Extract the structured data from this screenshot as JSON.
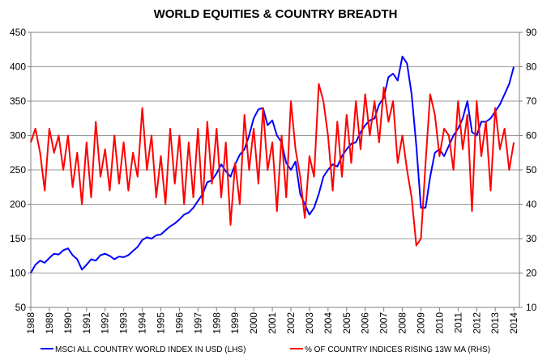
{
  "chart_data": {
    "type": "line",
    "title": "WORLD EQUITIES & COUNTRY BREADTH",
    "x_ticks": [
      "1988",
      "1989",
      "1990",
      "1991",
      "1992",
      "1993",
      "1994",
      "1995",
      "1996",
      "1997",
      "1998",
      "1999",
      "2000",
      "2001",
      "2002",
      "2003",
      "2004",
      "2005",
      "2006",
      "2007",
      "2008",
      "2009",
      "2010",
      "2011",
      "2012",
      "2013",
      "2014"
    ],
    "xlim": [
      1988,
      2014.3
    ],
    "left_axis": {
      "ylim": [
        50,
        450
      ],
      "ticks": [
        50,
        100,
        150,
        200,
        250,
        300,
        350,
        400,
        450
      ]
    },
    "right_axis": {
      "ylim": [
        10,
        90
      ],
      "ticks": [
        10,
        20,
        30,
        40,
        50,
        60,
        70,
        80,
        90
      ]
    },
    "grid": "horizontal",
    "legend_position": "bottom",
    "series": [
      {
        "name": "MSCI ALL COUNTRY WORLD INDEX IN USD (LHS)",
        "axis": "left",
        "color": "#0000ff",
        "x": [
          1988.0,
          1988.25,
          1988.5,
          1988.75,
          1989.0,
          1989.25,
          1989.5,
          1989.75,
          1990.0,
          1990.25,
          1990.5,
          1990.75,
          1991.0,
          1991.25,
          1991.5,
          1991.75,
          1992.0,
          1992.25,
          1992.5,
          1992.75,
          1993.0,
          1993.25,
          1993.5,
          1993.75,
          1994.0,
          1994.25,
          1994.5,
          1994.75,
          1995.0,
          1995.25,
          1995.5,
          1995.75,
          1996.0,
          1996.25,
          1996.5,
          1996.75,
          1997.0,
          1997.25,
          1997.5,
          1997.75,
          1998.0,
          1998.25,
          1998.5,
          1998.75,
          1999.0,
          1999.25,
          1999.5,
          1999.75,
          2000.0,
          2000.25,
          2000.5,
          2000.75,
          2001.0,
          2001.25,
          2001.5,
          2001.75,
          2002.0,
          2002.25,
          2002.5,
          2002.75,
          2003.0,
          2003.25,
          2003.5,
          2003.75,
          2004.0,
          2004.25,
          2004.5,
          2004.75,
          2005.0,
          2005.25,
          2005.5,
          2005.75,
          2006.0,
          2006.25,
          2006.5,
          2006.75,
          2007.0,
          2007.25,
          2007.5,
          2007.75,
          2008.0,
          2008.25,
          2008.5,
          2008.75,
          2009.0,
          2009.25,
          2009.5,
          2009.75,
          2010.0,
          2010.25,
          2010.5,
          2010.75,
          2011.0,
          2011.25,
          2011.5,
          2011.75,
          2012.0,
          2012.25,
          2012.5,
          2012.75,
          2013.0,
          2013.25,
          2013.5,
          2013.75,
          2014.0
        ],
        "values": [
          100,
          112,
          118,
          115,
          122,
          128,
          127,
          133,
          136,
          126,
          120,
          105,
          112,
          120,
          118,
          126,
          128,
          125,
          120,
          124,
          123,
          126,
          132,
          138,
          148,
          152,
          150,
          155,
          156,
          162,
          168,
          172,
          178,
          185,
          188,
          195,
          205,
          215,
          232,
          235,
          245,
          258,
          248,
          240,
          258,
          272,
          280,
          300,
          325,
          338,
          340,
          315,
          322,
          300,
          290,
          260,
          250,
          262,
          215,
          200,
          185,
          195,
          215,
          240,
          250,
          258,
          255,
          270,
          280,
          288,
          290,
          305,
          315,
          322,
          325,
          345,
          355,
          385,
          390,
          380,
          415,
          405,
          360,
          285,
          195,
          195,
          240,
          275,
          280,
          270,
          285,
          300,
          310,
          325,
          350,
          305,
          300,
          320,
          320,
          325,
          335,
          345,
          360,
          375,
          400
        ]
      },
      {
        "name": "% OF COUNTRY INDICES RISING 13W MA (RHS)",
        "axis": "right",
        "color": "#ff0000",
        "x": [
          1988.0,
          1988.25,
          1988.5,
          1988.75,
          1989.0,
          1989.25,
          1989.5,
          1989.75,
          1990.0,
          1990.25,
          1990.5,
          1990.75,
          1991.0,
          1991.25,
          1991.5,
          1991.75,
          1992.0,
          1992.25,
          1992.5,
          1992.75,
          1993.0,
          1993.25,
          1993.5,
          1993.75,
          1994.0,
          1994.25,
          1994.5,
          1994.75,
          1995.0,
          1995.25,
          1995.5,
          1995.75,
          1996.0,
          1996.25,
          1996.5,
          1996.75,
          1997.0,
          1997.25,
          1997.5,
          1997.75,
          1998.0,
          1998.25,
          1998.5,
          1998.75,
          1999.0,
          1999.25,
          1999.5,
          1999.75,
          2000.0,
          2000.25,
          2000.5,
          2000.75,
          2001.0,
          2001.25,
          2001.5,
          2001.75,
          2002.0,
          2002.25,
          2002.5,
          2002.75,
          2003.0,
          2003.25,
          2003.5,
          2003.75,
          2004.0,
          2004.25,
          2004.5,
          2004.75,
          2005.0,
          2005.25,
          2005.5,
          2005.75,
          2006.0,
          2006.25,
          2006.5,
          2006.75,
          2007.0,
          2007.25,
          2007.5,
          2007.75,
          2008.0,
          2008.25,
          2008.5,
          2008.75,
          2009.0,
          2009.25,
          2009.5,
          2009.75,
          2010.0,
          2010.25,
          2010.5,
          2010.75,
          2011.0,
          2011.25,
          2011.5,
          2011.75,
          2012.0,
          2012.25,
          2012.5,
          2012.75,
          2013.0,
          2013.25,
          2013.5,
          2013.75,
          2014.0
        ],
        "values": [
          58,
          62,
          55,
          44,
          62,
          55,
          60,
          50,
          60,
          45,
          55,
          40,
          58,
          42,
          64,
          48,
          56,
          44,
          60,
          46,
          58,
          44,
          55,
          48,
          68,
          50,
          60,
          42,
          54,
          40,
          62,
          46,
          60,
          40,
          58,
          42,
          62,
          40,
          64,
          46,
          62,
          42,
          58,
          34,
          52,
          40,
          66,
          50,
          62,
          46,
          68,
          50,
          58,
          38,
          60,
          42,
          70,
          56,
          48,
          36,
          54,
          48,
          75,
          70,
          60,
          44,
          64,
          48,
          66,
          52,
          70,
          56,
          72,
          60,
          70,
          58,
          74,
          64,
          70,
          52,
          60,
          50,
          42,
          28,
          30,
          52,
          72,
          66,
          54,
          62,
          60,
          50,
          70,
          56,
          66,
          38,
          70,
          54,
          64,
          44,
          68,
          56,
          62,
          50,
          58
        ]
      }
    ]
  }
}
